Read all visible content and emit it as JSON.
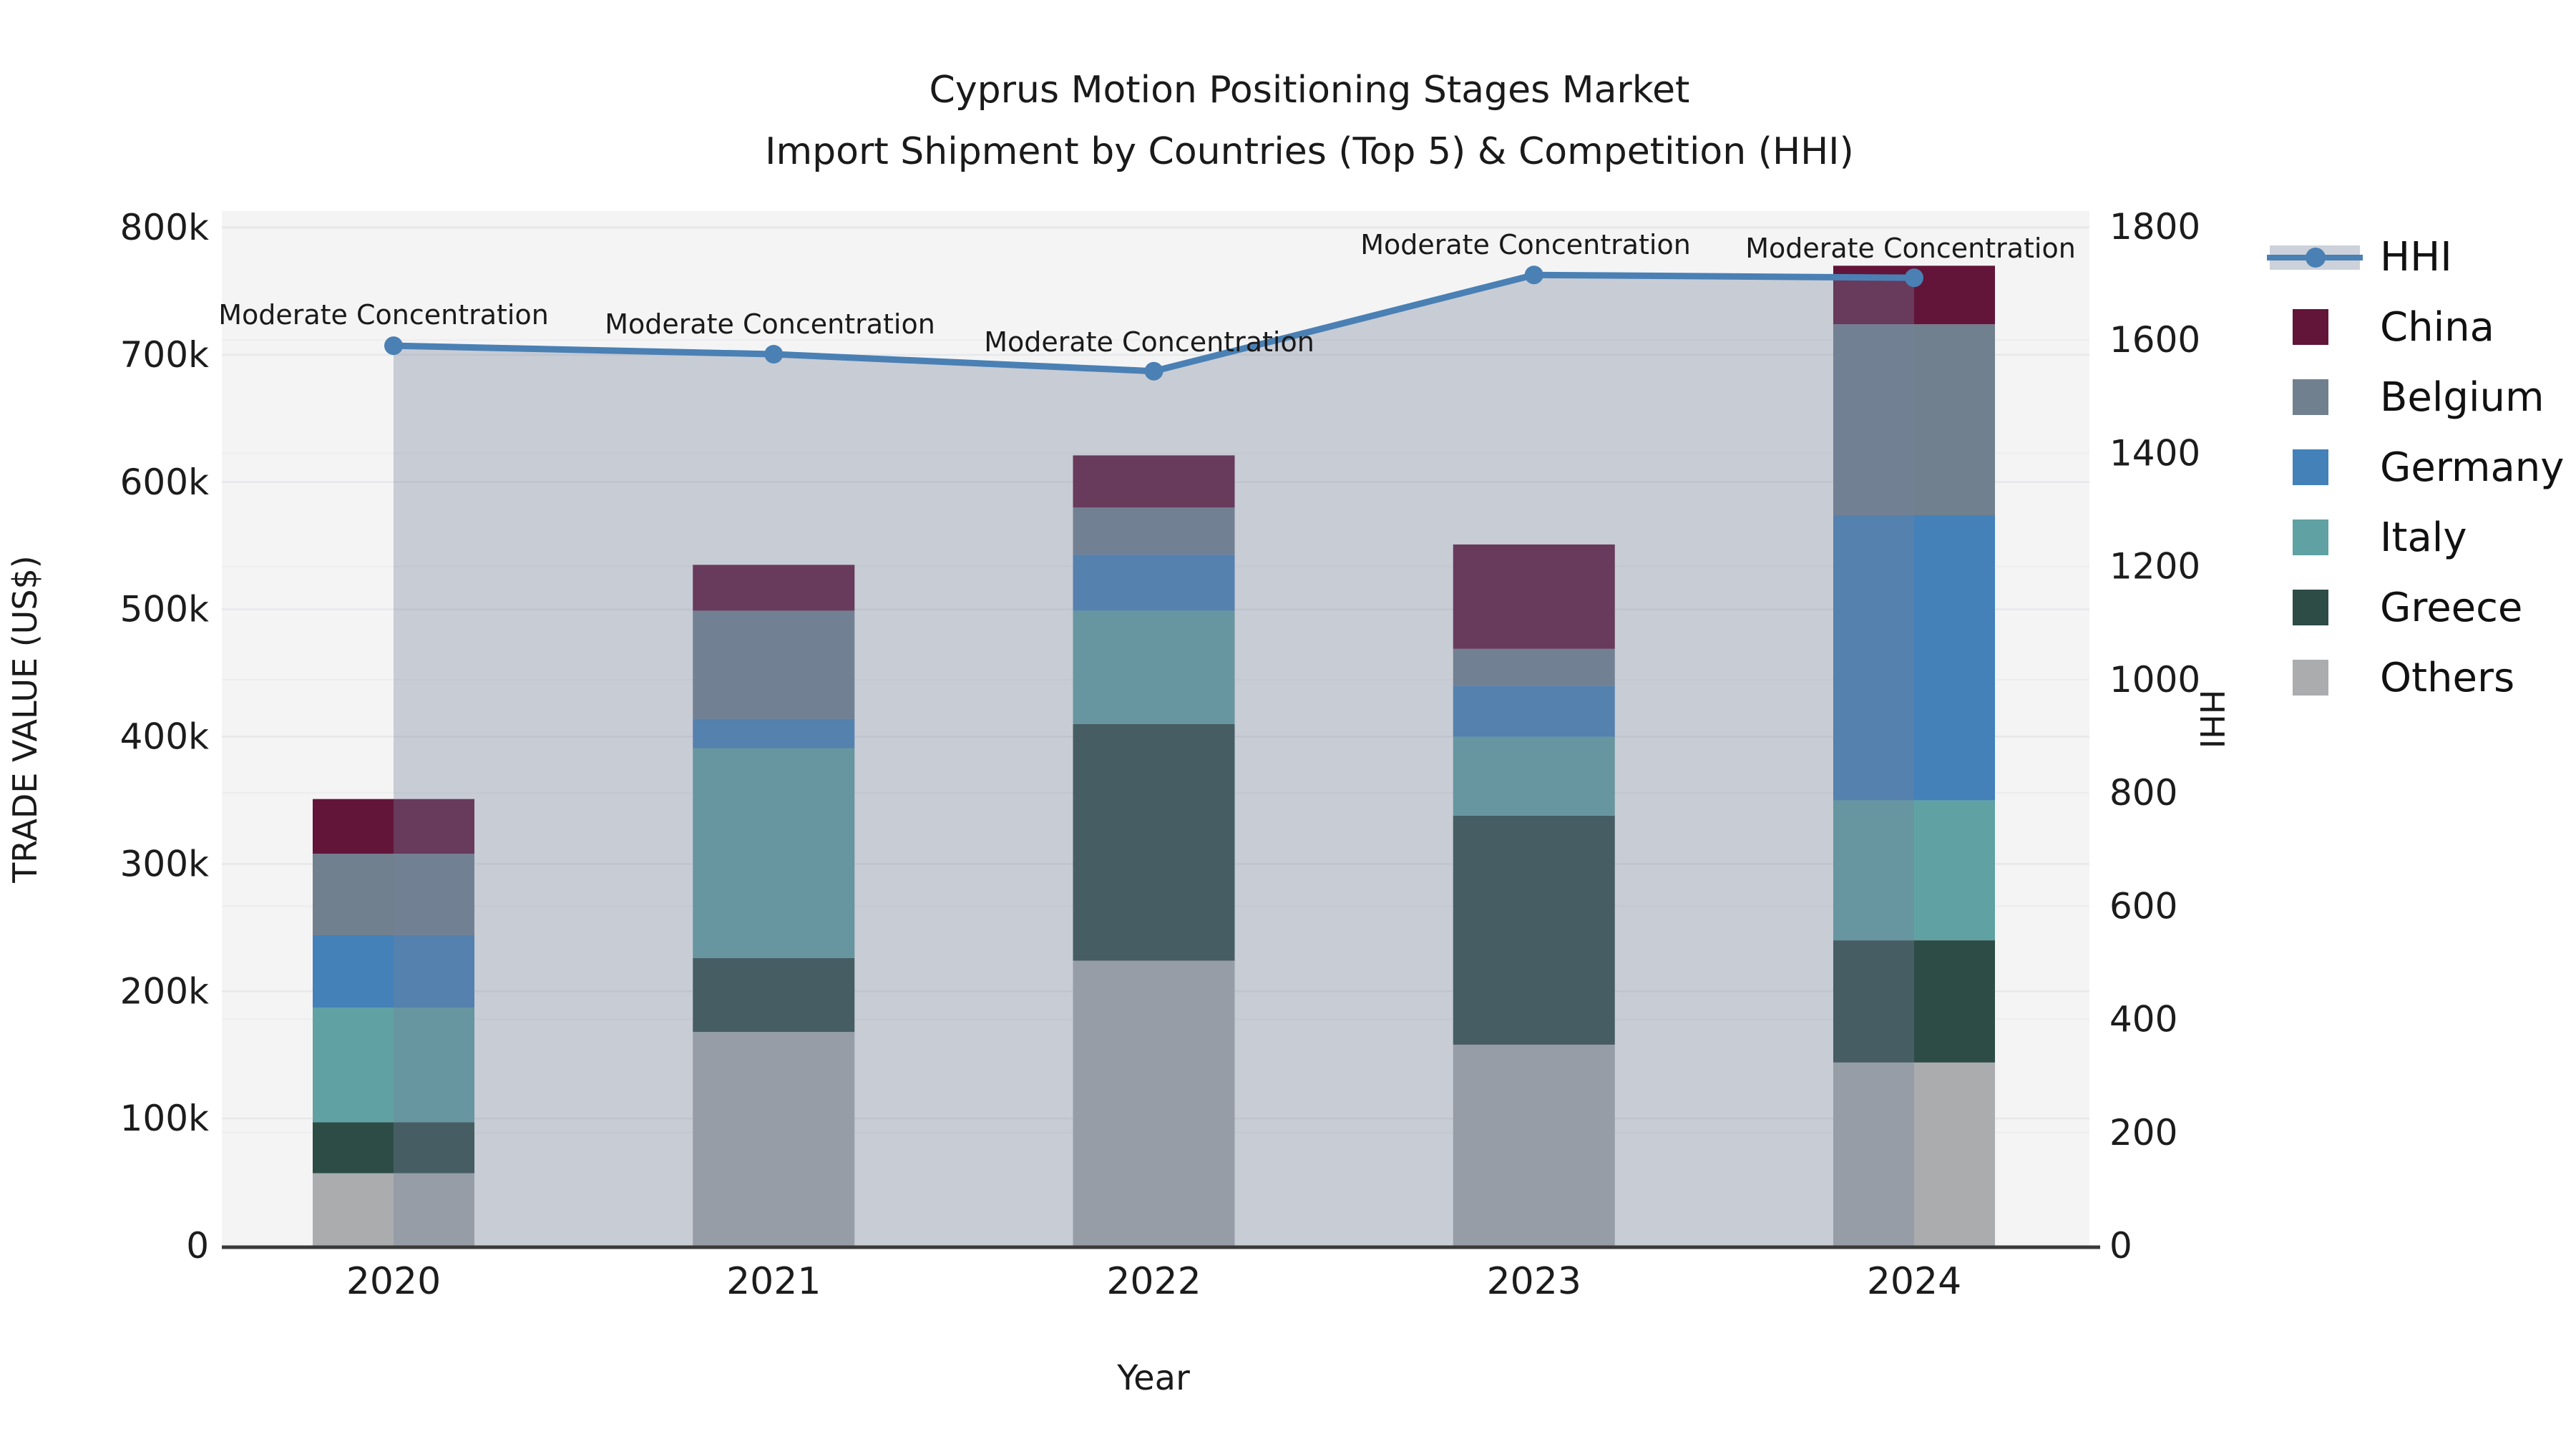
{
  "figure": {
    "title_line1": "Cyprus Motion Positioning Stages Market",
    "title_line2": "Import Shipment by Countries (Top 5) & Competition (HHI)"
  },
  "axes": {
    "left": {
      "label": "TRADE VALUE (US$)",
      "ticks": [
        "0",
        "100k",
        "200k",
        "300k",
        "400k",
        "500k",
        "600k",
        "700k",
        "800k"
      ],
      "max_thousand": 800
    },
    "right": {
      "label": "HHI",
      "ticks": [
        "0",
        "200",
        "400",
        "600",
        "800",
        "1000",
        "1200",
        "1400",
        "1600",
        "1800"
      ],
      "max": 1800
    },
    "x": {
      "label": "Year",
      "years": [
        "2020",
        "2021",
        "2022",
        "2023",
        "2024"
      ]
    }
  },
  "chart_data": {
    "type": "bar+line",
    "title": "Cyprus Motion Positioning Stages Market — Import Shipment by Countries (Top 5) & Competition (HHI)",
    "categories": [
      "2020",
      "2021",
      "2022",
      "2023",
      "2024"
    ],
    "values_unit": "thousand US$ (trade value, left axis)",
    "stack_note": "bars stacked bottom-to-top: Others, Greece, Italy, Germany, Belgium, China",
    "series": [
      {
        "name": "Others",
        "color": "#aaacae",
        "values": [
          57,
          168,
          224,
          158,
          144
        ]
      },
      {
        "name": "Greece",
        "color": "#2d4c46",
        "values": [
          40,
          58,
          186,
          180,
          96
        ]
      },
      {
        "name": "Italy",
        "color": "#60a2a3",
        "values": [
          90,
          165,
          89,
          62,
          110
        ]
      },
      {
        "name": "Germany",
        "color": "#4381b8",
        "values": [
          57,
          23,
          44,
          40,
          224
        ]
      },
      {
        "name": "Belgium",
        "color": "#71808f",
        "values": [
          64,
          85,
          37,
          29,
          150
        ]
      },
      {
        "name": "China",
        "color": "#621539",
        "values": [
          43,
          36,
          41,
          82,
          46
        ]
      }
    ],
    "bar_totals_thousand": [
      351,
      535,
      621,
      551,
      770
    ],
    "hhi_line": {
      "name": "HHI",
      "color": "#4a80b4",
      "values": [
        1590,
        1575,
        1545,
        1715,
        1710
      ],
      "area_fill_color": "#76829b",
      "area_fill_opacity": 0.35,
      "axis": "right",
      "ylim": [
        0,
        1800
      ]
    },
    "annotations": [
      "Moderate Concentration",
      "Moderate Concentration",
      "Moderate Concentration",
      "Moderate Concentration",
      "Moderate Concentration"
    ],
    "legend": [
      "HHI",
      "China",
      "Belgium",
      "Germany",
      "Italy",
      "Greece",
      "Others"
    ],
    "grid": true,
    "legend_position": "right-outside"
  },
  "style": {
    "plot_bg": "#f4f4f5",
    "grid_left": "#e7e8ea",
    "grid_right": "#ededef",
    "spine": "#3a3a3a",
    "text": "#1c1c1c",
    "legend_fill_sample": "#ccd1da"
  }
}
